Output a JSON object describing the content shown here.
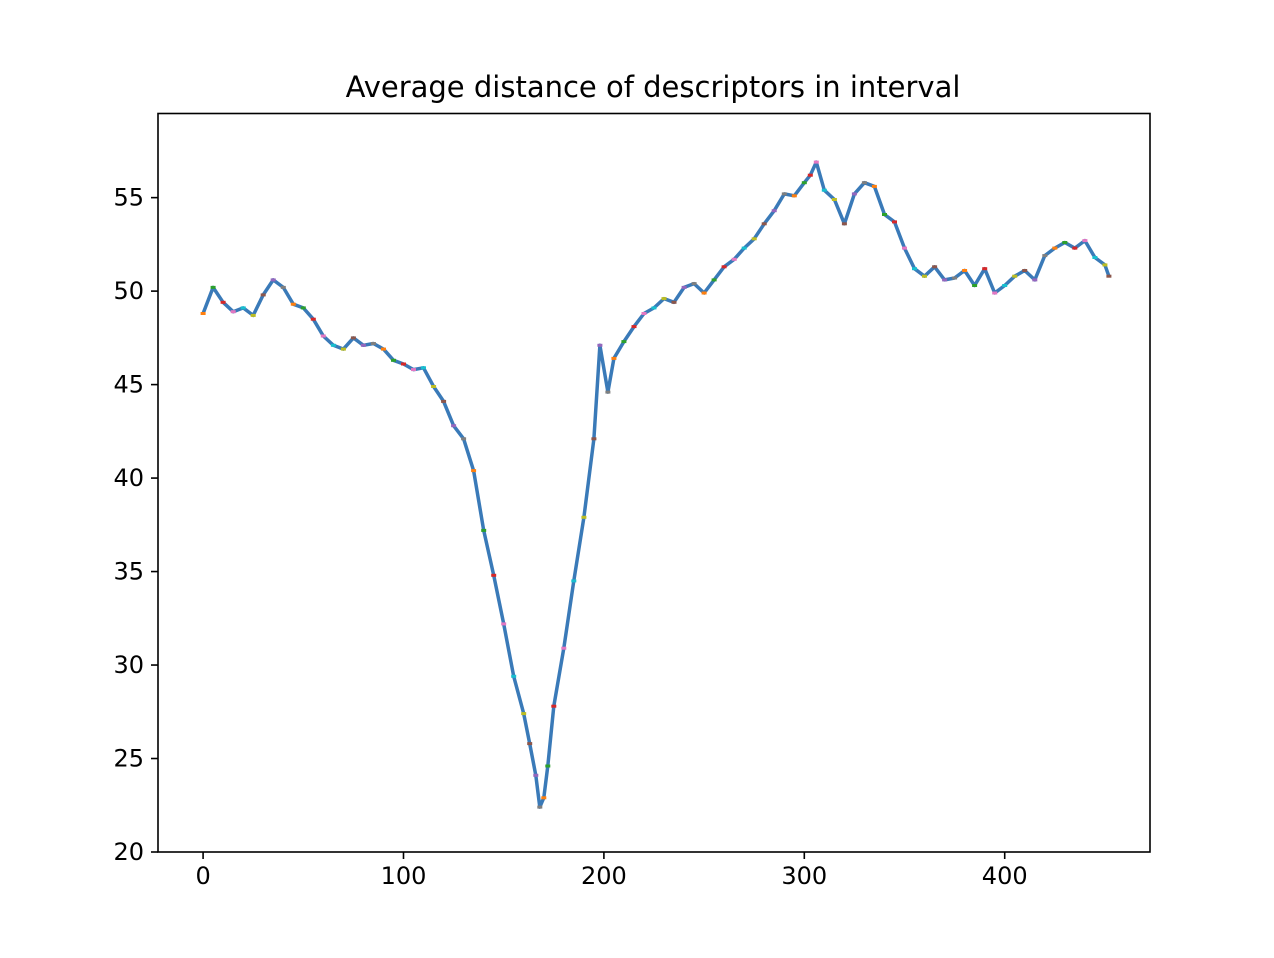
{
  "chart_data": {
    "type": "line",
    "title": "Average distance of descriptors in interval",
    "xlabel": "",
    "ylabel": "",
    "xlim": [
      -22.5,
      472.5
    ],
    "ylim": [
      20,
      59.5
    ],
    "x_ticks": [
      "0",
      "100",
      "200",
      "300",
      "400"
    ],
    "y_ticks": [
      "20",
      "25",
      "30",
      "35",
      "40",
      "45",
      "50",
      "55"
    ],
    "grid": false,
    "legend": "none",
    "line_color": "#3a7ab8",
    "marker_colors": [
      "#ff7f0e",
      "#2ca02c",
      "#d62728",
      "#e377c2",
      "#17becf",
      "#bcbd22",
      "#8c564b",
      "#9467bd",
      "#7f7f7f"
    ],
    "series": [
      {
        "x": [
          0,
          5,
          10,
          15,
          20,
          25,
          30,
          35,
          40,
          45,
          50,
          55,
          60,
          65,
          70,
          75,
          80,
          85,
          90,
          95,
          100,
          105,
          110,
          115,
          120,
          125,
          130,
          135,
          140,
          145,
          150,
          155,
          160,
          163,
          166,
          168,
          170,
          172,
          175,
          180,
          185,
          190,
          195,
          198,
          202,
          205,
          210,
          215,
          220,
          225,
          230,
          235,
          240,
          245,
          250,
          255,
          260,
          265,
          270,
          275,
          280,
          285,
          290,
          295,
          300,
          303,
          306,
          310,
          315,
          320,
          325,
          330,
          335,
          340,
          345,
          350,
          355,
          360,
          365,
          370,
          375,
          380,
          385,
          390,
          395,
          400,
          405,
          410,
          415,
          420,
          425,
          430,
          435,
          440,
          445,
          450,
          452
        ],
        "y": [
          48.8,
          50.2,
          49.4,
          48.9,
          49.1,
          48.7,
          49.8,
          50.6,
          50.2,
          49.3,
          49.1,
          48.5,
          47.6,
          47.1,
          46.9,
          47.5,
          47.1,
          47.2,
          46.9,
          46.3,
          46.1,
          45.8,
          45.9,
          44.9,
          44.1,
          42.8,
          42.1,
          40.4,
          37.2,
          34.8,
          32.2,
          29.4,
          27.4,
          25.8,
          24.1,
          22.4,
          22.9,
          24.6,
          27.8,
          30.9,
          34.5,
          37.9,
          42.1,
          47.1,
          44.6,
          46.4,
          47.3,
          48.1,
          48.8,
          49.1,
          49.6,
          49.4,
          50.2,
          50.4,
          49.9,
          50.6,
          51.3,
          51.7,
          52.3,
          52.8,
          53.6,
          54.3,
          55.2,
          55.1,
          55.8,
          56.2,
          56.9,
          55.4,
          54.9,
          53.6,
          55.2,
          55.8,
          55.6,
          54.1,
          53.7,
          52.3,
          51.2,
          50.8,
          51.3,
          50.6,
          50.7,
          51.1,
          50.3,
          51.2,
          49.9,
          50.3,
          50.8,
          51.1,
          50.6,
          51.9,
          52.3,
          52.6,
          52.3,
          52.7,
          51.8,
          51.4,
          50.8
        ]
      }
    ]
  }
}
